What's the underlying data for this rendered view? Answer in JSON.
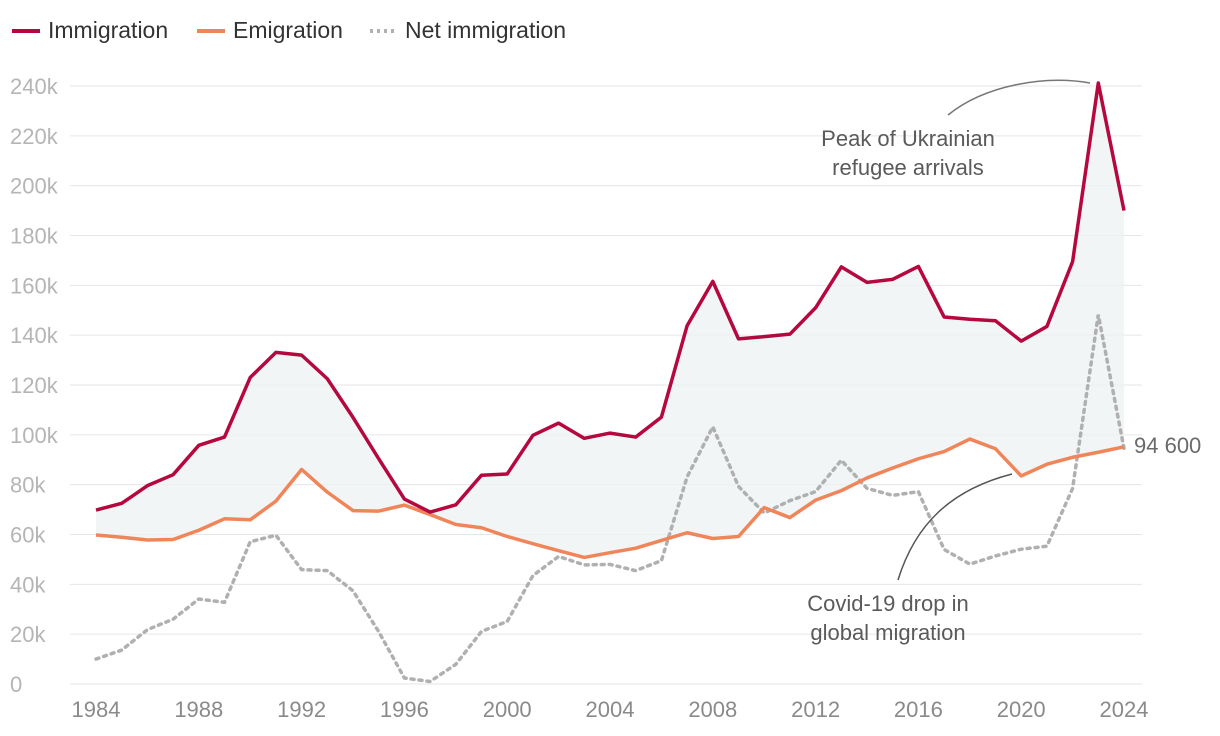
{
  "chart_data": {
    "type": "line",
    "title": "",
    "xlabel": "",
    "ylabel": "",
    "ylim": [
      0,
      240000
    ],
    "grid": true,
    "legend_position": "top-left",
    "x": [
      1984,
      1985,
      1986,
      1987,
      1988,
      1989,
      1990,
      1991,
      1992,
      1993,
      1994,
      1995,
      1996,
      1997,
      1998,
      1999,
      2000,
      2001,
      2002,
      2003,
      2004,
      2005,
      2006,
      2007,
      2008,
      2009,
      2010,
      2011,
      2012,
      2013,
      2014,
      2015,
      2016,
      2017,
      2018,
      2019,
      2020,
      2021,
      2022,
      2023,
      2024
    ],
    "x_ticks": [
      "1984",
      "1988",
      "1992",
      "1996",
      "2000",
      "2004",
      "2008",
      "2012",
      "2016",
      "2020",
      "2024"
    ],
    "y_ticks": [
      "0",
      "20k",
      "40k",
      "60k",
      "80k",
      "100k",
      "120k",
      "140k",
      "160k",
      "180k",
      "200k",
      "220k",
      "240k"
    ],
    "series": [
      {
        "name": "Immigration",
        "color": "#b5083f",
        "style": "solid",
        "values": [
          69800,
          72500,
          79600,
          84000,
          95800,
          99100,
          123000,
          133100,
          132000,
          122500,
          107000,
          90400,
          74200,
          69000,
          71900,
          83800,
          84300,
          99800,
          104700,
          98600,
          100700,
          99100,
          107100,
          143800,
          161600,
          138500,
          139400,
          140400,
          151000,
          167400,
          161200,
          162400,
          167600,
          147300,
          146400,
          145800,
          137600,
          143500,
          169500,
          241200,
          190000
        ]
      },
      {
        "name": "Emigration",
        "color": "#f0855a",
        "style": "solid",
        "values": [
          59800,
          58900,
          57800,
          58000,
          61700,
          66300,
          65900,
          73400,
          86100,
          77000,
          69600,
          69400,
          71800,
          68000,
          64000,
          62700,
          59200,
          56300,
          53500,
          50800,
          52700,
          54500,
          57600,
          60700,
          58400,
          59200,
          70800,
          66800,
          73800,
          77600,
          82700,
          86700,
          90400,
          93300,
          98300,
          94400,
          83500,
          88200,
          91000,
          93000,
          95200
        ]
      },
      {
        "name": "Net immigration",
        "color": "#b0b0b0",
        "style": "dotted",
        "values": [
          10000,
          13600,
          21800,
          26000,
          34100,
          32800,
          57100,
          59700,
          45900,
          45500,
          37400,
          21000,
          2400,
          1000,
          7900,
          21100,
          25100,
          43500,
          51200,
          47800,
          48000,
          45500,
          49500,
          83100,
          103200,
          79300,
          68600,
          73600,
          77200,
          89800,
          78500,
          75700,
          77200,
          54000,
          48100,
          51400,
          54100,
          55300,
          78500,
          148200,
          94600
        ]
      }
    ],
    "annotations": [
      {
        "text_line1": "Peak of Ukrainian",
        "text_line2": "refugee arrivals",
        "x": 2023,
        "y": 241200
      },
      {
        "text_line1": "Covid-19 drop in",
        "text_line2": "global migration",
        "x": 2020,
        "y": 83500
      }
    ],
    "end_label": "94 600"
  }
}
